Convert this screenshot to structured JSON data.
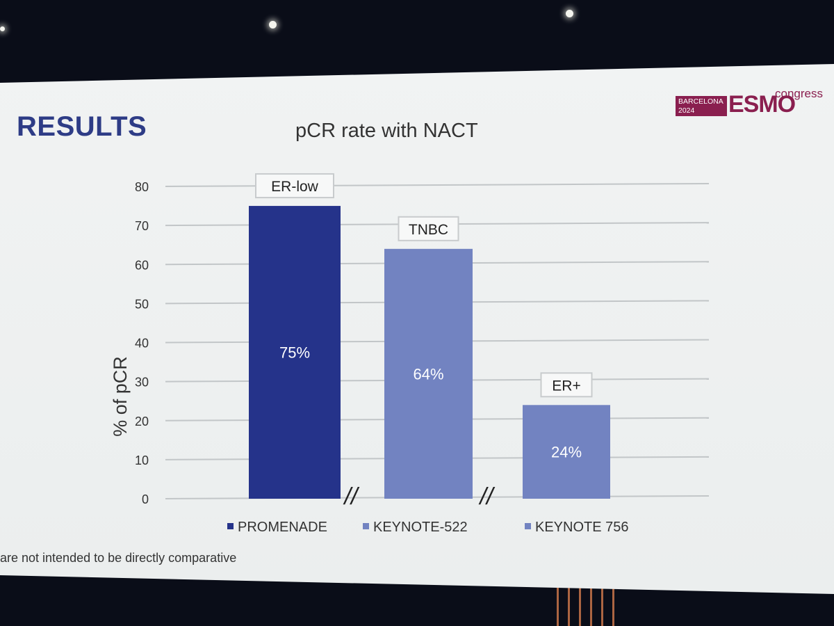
{
  "slide": {
    "heading": "RESULTS",
    "footnote": "are not intended to be directly comparative",
    "logo": {
      "city": "BARCELONA",
      "year": "2024",
      "word": "ESMO",
      "suffix": "congress",
      "color": "#8a1f4f"
    }
  },
  "chart_data": {
    "type": "bar",
    "title": "pCR rate with NACT",
    "ylabel": "% of pCR",
    "ylim": [
      0,
      80
    ],
    "yticks": [
      "0",
      "10",
      "20",
      "30",
      "40",
      "50",
      "60",
      "70",
      "80"
    ],
    "grid": true,
    "categories": [
      "PROMENADE",
      "KEYNOTE-522",
      "KEYNOTE 756"
    ],
    "values": [
      75,
      64,
      24
    ],
    "value_labels": [
      "75%",
      "64%",
      "24%"
    ],
    "group_labels": [
      "ER-low",
      "TNBC",
      "ER+"
    ],
    "colors": [
      "#25338a",
      "#7283c1",
      "#7283c1"
    ],
    "break_marker": "//",
    "legend_placement": "bottom"
  }
}
